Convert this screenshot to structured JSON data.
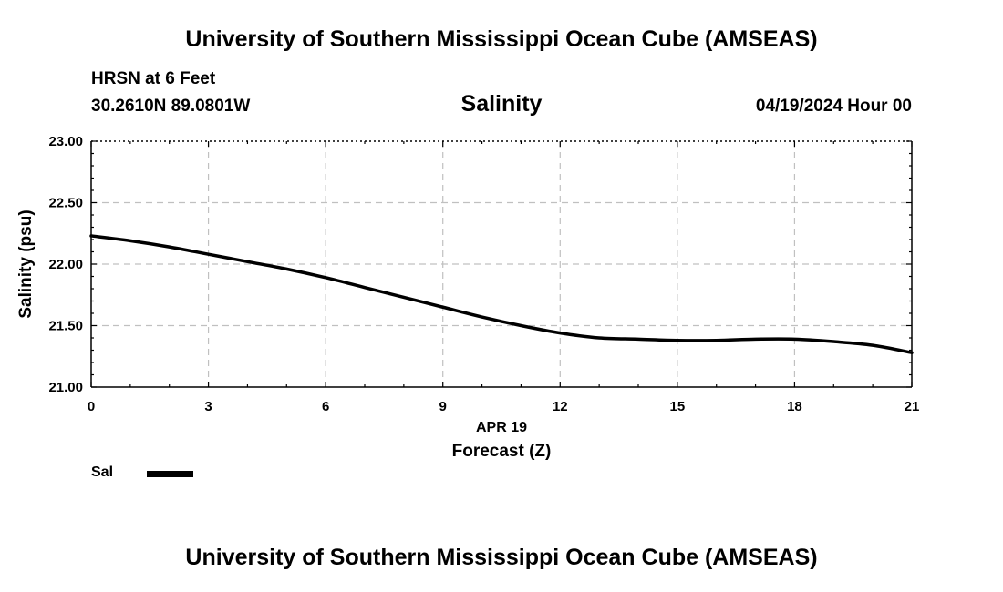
{
  "header": {
    "title": "University of Southern Mississippi Ocean Cube (AMSEAS)",
    "station": "HRSN at 6 Feet",
    "coordinates": "30.2610N  89.0801W",
    "variable_title": "Salinity",
    "datetime": "04/19/2024 Hour 00"
  },
  "footer": {
    "title": "University of Southern Mississippi Ocean Cube (AMSEAS)"
  },
  "legend": {
    "label": "Sal",
    "color": "#000000"
  },
  "chart_data": {
    "type": "line",
    "title": "Salinity",
    "xlabel": "Forecast (Z)",
    "xlabel_date": "APR 19",
    "ylabel": "Salinity (psu)",
    "xlim": [
      0,
      21
    ],
    "ylim": [
      21.0,
      23.0
    ],
    "x_ticks": [
      0,
      3,
      6,
      9,
      12,
      15,
      18,
      21
    ],
    "x_tick_labels": [
      "0",
      "3",
      "6",
      "9",
      "12",
      "15",
      "18",
      "21"
    ],
    "y_ticks": [
      21.0,
      21.5,
      22.0,
      22.5,
      23.0
    ],
    "y_tick_labels": [
      "21.00",
      "21.50",
      "22.00",
      "22.50",
      "23.00"
    ],
    "grid": true,
    "series": [
      {
        "name": "Sal",
        "color": "#000000",
        "x": [
          0,
          1,
          2,
          3,
          4,
          5,
          6,
          7,
          8,
          9,
          10,
          11,
          12,
          13,
          14,
          15,
          16,
          17,
          18,
          19,
          20,
          21
        ],
        "values": [
          22.23,
          22.19,
          22.14,
          22.08,
          22.02,
          21.96,
          21.89,
          21.81,
          21.73,
          21.65,
          21.57,
          21.5,
          21.44,
          21.4,
          21.39,
          21.38,
          21.38,
          21.39,
          21.39,
          21.37,
          21.34,
          21.28
        ]
      }
    ]
  }
}
